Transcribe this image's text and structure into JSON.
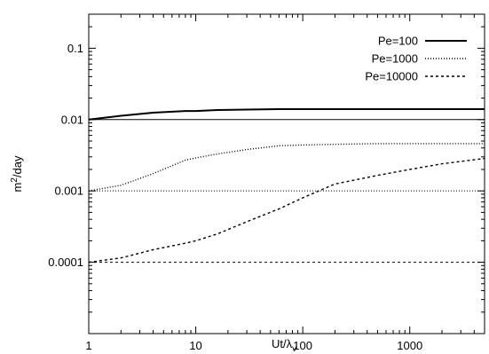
{
  "chart_data": {
    "type": "line",
    "x_scale": "log",
    "y_scale": "log",
    "xlim": [
      1,
      5000
    ],
    "ylim": [
      1e-05,
      0.3
    ],
    "xticks": [
      {
        "value": 1,
        "label": "1"
      },
      {
        "value": 10,
        "label": "10"
      },
      {
        "value": 100,
        "label": "100"
      },
      {
        "value": 1000,
        "label": "1000"
      }
    ],
    "yticks": [
      {
        "value": 0.0001,
        "label": "0.0001"
      },
      {
        "value": 0.001,
        "label": "0.001"
      },
      {
        "value": 0.01,
        "label": "0.01"
      },
      {
        "value": 0.1,
        "label": "0.1"
      }
    ],
    "xlabel": {
      "main": "Ut/",
      "greek": "λ",
      "sub": "v"
    },
    "ylabel": {
      "main": "m",
      "sup": "2",
      "rest": "/day"
    },
    "legend_position": "top-right",
    "series": [
      {
        "name": "Pe=100",
        "style": "solid",
        "x": [
          1,
          2,
          4,
          8,
          10,
          16,
          30,
          60,
          100,
          200,
          500,
          1000,
          5000
        ],
        "y": [
          0.01,
          0.0113,
          0.0125,
          0.0132,
          0.0132,
          0.0136,
          0.0138,
          0.014,
          0.014,
          0.014,
          0.014,
          0.014,
          0.014
        ]
      },
      {
        "name": "Pe=1000",
        "style": "dotted",
        "x": [
          1,
          2,
          4,
          8,
          10,
          16,
          30,
          60,
          100,
          200,
          500,
          1000,
          5000
        ],
        "y": [
          0.001,
          0.0012,
          0.00175,
          0.0027,
          0.0029,
          0.0033,
          0.0038,
          0.0043,
          0.0044,
          0.0045,
          0.0046,
          0.0046,
          0.0046
        ]
      },
      {
        "name": "Pe=10000",
        "style": "dashed",
        "x": [
          1,
          2,
          4,
          8,
          10,
          16,
          30,
          60,
          100,
          200,
          500,
          1000,
          2000,
          5000
        ],
        "y": [
          0.0001,
          0.000115,
          0.00015,
          0.000185,
          0.0002,
          0.00025,
          0.00037,
          0.00056,
          0.0008,
          0.00125,
          0.00165,
          0.002,
          0.0024,
          0.00285
        ]
      }
    ],
    "reference_lines": [
      {
        "y": 0.01,
        "style": "solid"
      },
      {
        "y": 0.001,
        "style": "dotted"
      },
      {
        "y": 0.0001,
        "style": "dashed"
      }
    ]
  }
}
